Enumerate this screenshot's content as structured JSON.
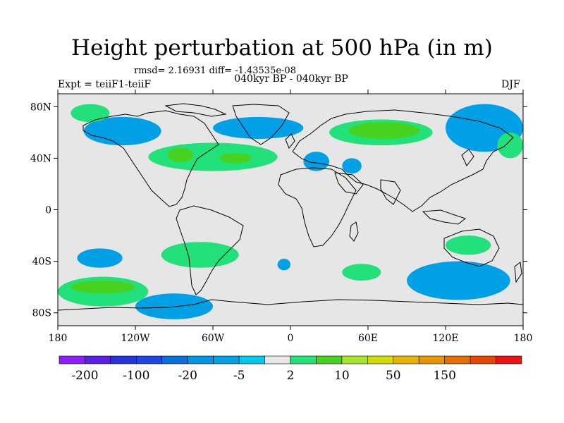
{
  "map": {
    "title": "Height perturbation at 500 hPa (in m)",
    "stats_line": "rmsd= 2.16931 diff= -1.43535e-08",
    "subtitle": "040kyr BP - 040kyr BP",
    "experiment": "Expt = teiiF1-teiiF",
    "season": "DJF",
    "projection": "cylindrical equidistant",
    "lon_range": [
      -180,
      180
    ],
    "lat_range": [
      -90,
      90
    ],
    "background_color": "#e6e6e6",
    "coastline_color": "#000000",
    "lat_ticks": [
      {
        "value": 80,
        "label": "80N"
      },
      {
        "value": 40,
        "label": "40N"
      },
      {
        "value": 0,
        "label": "0"
      },
      {
        "value": -40,
        "label": "40S"
      },
      {
        "value": -80,
        "label": "80S"
      }
    ],
    "lon_ticks": [
      {
        "value": -180,
        "label": "180"
      },
      {
        "value": -120,
        "label": "120W"
      },
      {
        "value": -60,
        "label": "60W"
      },
      {
        "value": 0,
        "label": "0"
      },
      {
        "value": 60,
        "label": "60E"
      },
      {
        "value": 120,
        "label": "120E"
      },
      {
        "value": 180,
        "label": "180"
      }
    ],
    "features": [
      {
        "kind": "negative",
        "region": "Aleutian / North Pacific",
        "color": "#00a0e6",
        "lon": [
          -160,
          -100
        ],
        "lat": [
          50,
          72
        ]
      },
      {
        "kind": "positive",
        "region": "Arctic north of Alaska",
        "color": "#22e07a",
        "lon": [
          -170,
          -140
        ],
        "lat": [
          68,
          82
        ]
      },
      {
        "kind": "positive",
        "region": "Eastern North America / North Atlantic",
        "color": "#22e07a",
        "lon": [
          -110,
          -10
        ],
        "lat": [
          30,
          52
        ]
      },
      {
        "kind": "positive",
        "region": "Eastern North America core",
        "color": "#46d21e",
        "lon": [
          -95,
          -75
        ],
        "lat": [
          37,
          48
        ]
      },
      {
        "kind": "positive",
        "region": "Mid North Atlantic core",
        "color": "#46d21e",
        "lon": [
          -55,
          -30
        ],
        "lat": [
          36,
          44
        ]
      },
      {
        "kind": "negative",
        "region": "Greenland / North Atlantic",
        "color": "#00a0e6",
        "lon": [
          -60,
          10
        ],
        "lat": [
          55,
          72
        ]
      },
      {
        "kind": "negative",
        "region": "Mediterranean",
        "color": "#00a0e6",
        "lon": [
          10,
          30
        ],
        "lat": [
          30,
          45
        ]
      },
      {
        "kind": "negative",
        "region": "Middle East",
        "color": "#00a0e6",
        "lon": [
          40,
          55
        ],
        "lat": [
          28,
          40
        ]
      },
      {
        "kind": "positive",
        "region": "Siberia",
        "color": "#22e07a",
        "lon": [
          30,
          110
        ],
        "lat": [
          50,
          70
        ]
      },
      {
        "kind": "positive",
        "region": "Siberia core",
        "color": "#46d21e",
        "lon": [
          45,
          100
        ],
        "lat": [
          55,
          68
        ]
      },
      {
        "kind": "negative",
        "region": "East Asia / North Pacific",
        "color": "#00a0e6",
        "lon": [
          120,
          180
        ],
        "lat": [
          45,
          82
        ]
      },
      {
        "kind": "positive",
        "region": "Far east Arctic",
        "color": "#22e07a",
        "lon": [
          160,
          180
        ],
        "lat": [
          40,
          60
        ]
      },
      {
        "kind": "negative",
        "region": "South Pacific 40S",
        "color": "#00a0e6",
        "lon": [
          -165,
          -130
        ],
        "lat": [
          -45,
          -30
        ]
      },
      {
        "kind": "positive",
        "region": "South America",
        "color": "#22e07a",
        "lon": [
          -100,
          -40
        ],
        "lat": [
          -45,
          -25
        ]
      },
      {
        "kind": "negative",
        "region": "South Atlantic",
        "color": "#00a0e6",
        "lon": [
          -10,
          0
        ],
        "lat": [
          -47,
          -38
        ]
      },
      {
        "kind": "positive",
        "region": "Indian Ocean",
        "color": "#22e07a",
        "lon": [
          40,
          70
        ],
        "lat": [
          -55,
          -42
        ]
      },
      {
        "kind": "negative",
        "region": "Southern Ocean south of Australia",
        "color": "#00a0e6",
        "lon": [
          90,
          170
        ],
        "lat": [
          -70,
          -40
        ]
      },
      {
        "kind": "positive",
        "region": "Australia",
        "color": "#22e07a",
        "lon": [
          120,
          155
        ],
        "lat": [
          -35,
          -20
        ]
      },
      {
        "kind": "positive",
        "region": "South Pacific 60S",
        "color": "#22e07a",
        "lon": [
          -180,
          -110
        ],
        "lat": [
          -75,
          -52
        ]
      },
      {
        "kind": "positive",
        "region": "South Pacific 60S core",
        "color": "#46d21e",
        "lon": [
          -170,
          -120
        ],
        "lat": [
          -65,
          -55
        ]
      },
      {
        "kind": "negative",
        "region": "Antarctic coast",
        "color": "#00a0e6",
        "lon": [
          -120,
          -60
        ],
        "lat": [
          -85,
          -65
        ]
      }
    ]
  },
  "colorbar": {
    "colors": [
      "#8c1eff",
      "#5a1ee6",
      "#2832dc",
      "#1e46e6",
      "#0a6edc",
      "#0096e6",
      "#00a0e6",
      "#00c8f0",
      "#e6e6e6",
      "#22e07a",
      "#46d21e",
      "#a6e628",
      "#d2dc00",
      "#e6b400",
      "#e69600",
      "#e66e00",
      "#e64600",
      "#eb1414"
    ],
    "labels": [
      "-200",
      "-100",
      "-20",
      "-5",
      "2",
      "10",
      "50",
      "150"
    ]
  }
}
